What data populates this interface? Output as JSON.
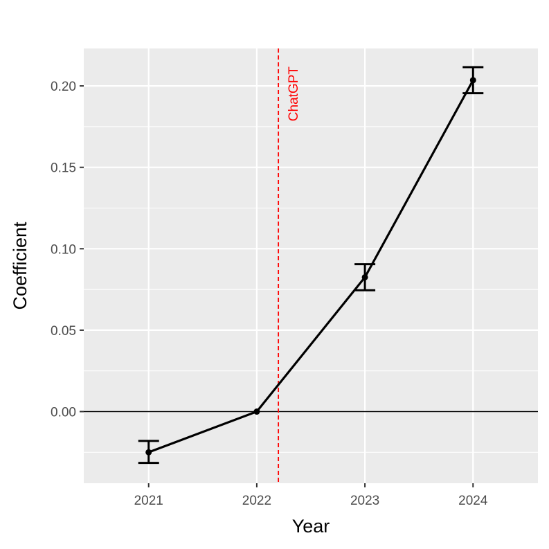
{
  "chart_data": {
    "type": "line",
    "title": "",
    "xlabel": "Year",
    "ylabel": "Coefficient",
    "x": [
      2021,
      2022,
      2023,
      2024
    ],
    "x_tick_labels": [
      "2021",
      "2022",
      "2023",
      "2024"
    ],
    "y_tick_labels": [
      "0.00",
      "0.05",
      "0.10",
      "0.15",
      "0.20"
    ],
    "y_ticks": [
      0.0,
      0.05,
      0.1,
      0.15,
      0.2
    ],
    "xlim": [
      2020.4,
      2024.6
    ],
    "ylim": [
      -0.044,
      0.223
    ],
    "grid": true,
    "series": [
      {
        "values": [
          -0.025,
          0.0,
          0.0825,
          0.2035
        ],
        "error_low": [
          -0.0315,
          0.0,
          0.0745,
          0.1955
        ],
        "error_high": [
          -0.018,
          0.0,
          0.0905,
          0.2115
        ],
        "color": "#000000"
      }
    ],
    "reference_hline": {
      "y": 0.0,
      "color": "#000000"
    },
    "annotation": {
      "label": "ChatGPT",
      "x": 2022.2,
      "color": "#ff0000"
    },
    "background_color": "#ebebeb"
  }
}
